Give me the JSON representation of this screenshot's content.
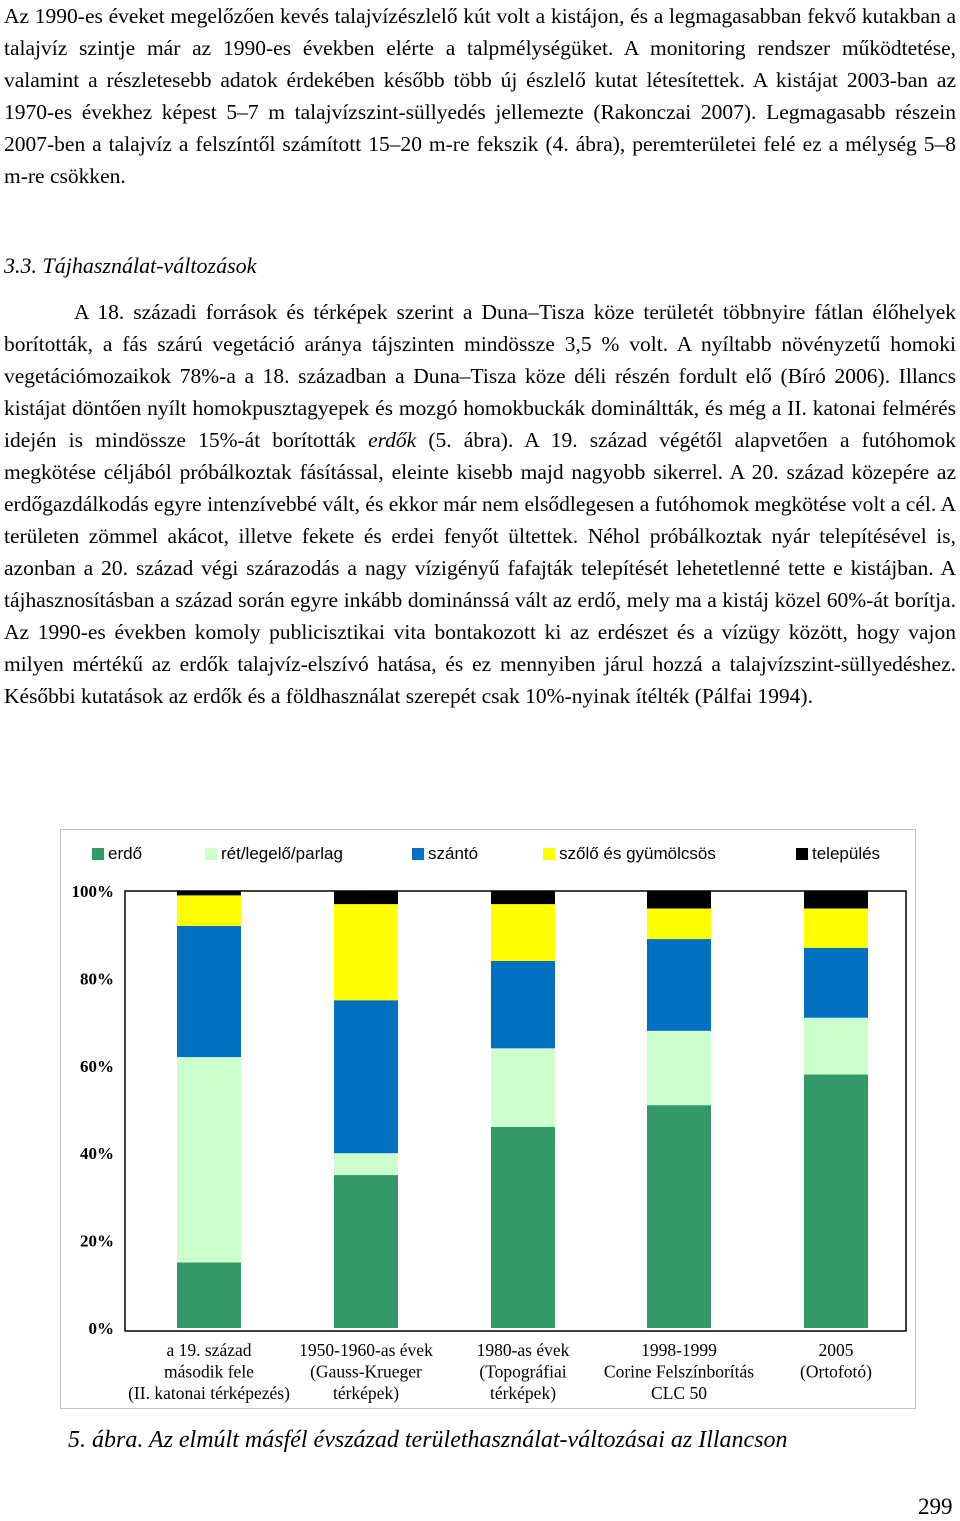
{
  "body": {
    "paragraph1": "Az 1990-es éveket megelőzően kevés talajvízészlelő kút volt a kistájon, és a legmagasabban fekvő kutakban a talajvíz szintje már az 1990-es években elérte a talpmélységüket. A monitoring rendszer működtetése, valamint a részletesebb adatok érdekében később több új észlelő kutat létesítettek. A kistájat 2003-ban az 1970-es évekhez képest 5–7 m talajvízszint-süllyedés jellemezte (Rakonczai 2007). Legmagasabb részein 2007-ben a talajvíz a felszíntől számított 15–20 m-re fekszik (4. ábra), peremterületei felé ez a mélység 5–8 m-re csökken.",
    "heading": "3.3. Tájhasználat-változások",
    "paragraph2_part1": "A 18. századi források és térképek szerint a Duna–Tisza köze területét többnyire fátlan élőhelyek borították, a fás szárú vegetáció aránya tájszinten mindössze 3,5 % volt. A nyíltabb növényzetű homoki vegetációmozaikok 78%-a a 18. században a Duna–Tisza köze déli részén fordult elő (Bíró 2006). Illancs kistájat döntően nyílt homokpusztagyepek és mozgó homokbuckák domináltták, és még a II. katonai felmérés idején is mindössze 15%-át borították ",
    "paragraph2_italic": "erdők",
    "paragraph2_part2": " (5. ábra). A 19. század végétől alapvetően a futóhomok megkötése céljából próbálkoztak fásítással, eleinte kisebb majd nagyobb sikerrel. A 20. század közepére az erdőgazdálkodás egyre intenzívebbé vált, és ekkor már nem elsődlegesen a futóhomok megkötése volt a cél. A területen zömmel akácot, illetve fekete és erdei fenyőt ültettek. Néhol próbálkoztak nyár telepítésével is, azonban a 20. század végi szárazodás a nagy vízigényű fafajták telepítését lehetetlenné tette e kistájban. A tájhasznosításban a század során egyre inkább dominánssá vált az erdő, mely ma a kistáj közel 60%-át borítja. Az 1990-es években komoly publicisztikai vita bontakozott ki az erdészet és a vízügy között, hogy vajon milyen mértékű az erdők talajvíz-elszívó hatása, és ez mennyiben járul hozzá a talajvízszint-süllyedéshez. Későbbi kutatások az erdők és a földhasználat szerepét csak 10%-nyinak ítélték (Pálfai 1994).",
    "caption": "5. ábra. Az elmúlt másfél évszázad területhasználat-változásai az Illancson",
    "page_number": "299"
  },
  "chart_data": {
    "type": "bar",
    "stacked": true,
    "categories": [
      [
        "a 19. század",
        "második fele",
        "(II. katonai térképezés)"
      ],
      [
        "1950-1960-as évek",
        "(Gauss-Krueger",
        "térképek)"
      ],
      [
        "1980-as évek",
        "(Topográfiai",
        "térképek)"
      ],
      [
        "1998-1999",
        "Corine Felszínborítás",
        "CLC 50"
      ],
      [
        "2005",
        "(Ortofotó)"
      ]
    ],
    "series": [
      {
        "name": "erdő",
        "color": "#339966",
        "values": [
          15,
          35,
          46,
          51,
          58
        ]
      },
      {
        "name": "rét/legelő/parlag",
        "color": "#ccffcc",
        "values": [
          47,
          5,
          18,
          17,
          13
        ]
      },
      {
        "name": "szántó",
        "color": "#0070c0",
        "values": [
          30,
          35,
          20,
          21,
          16
        ]
      },
      {
        "name": "szőlő és gyümölcsös",
        "color": "#ffff00",
        "values": [
          7,
          22,
          13,
          7,
          9
        ]
      },
      {
        "name": "település",
        "color": "#000000",
        "values": [
          1,
          3,
          3,
          4,
          4
        ]
      }
    ],
    "yticks": [
      "0%",
      "20%",
      "40%",
      "60%",
      "80%",
      "100%"
    ],
    "ylim": [
      0,
      100
    ],
    "legend_position": "top",
    "grid": false
  }
}
